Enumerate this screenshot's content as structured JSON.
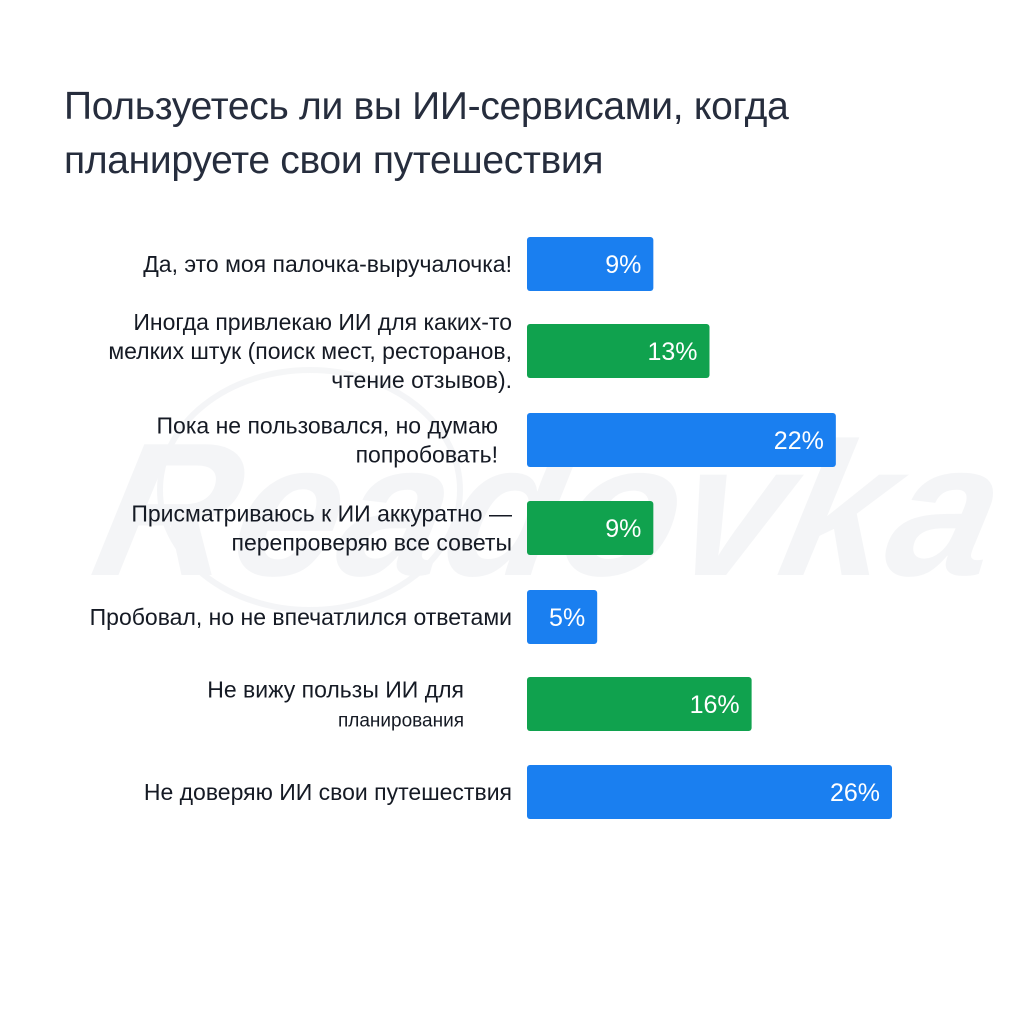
{
  "chart_data": {
    "type": "bar",
    "orientation": "horizontal",
    "title": "Пользуетесь ли вы ИИ-сервисами, когда планируете свои путешествия",
    "unit": "%",
    "xlim": [
      0,
      26
    ],
    "grid": false,
    "legend": "none",
    "categories": [
      "Да, это моя палочка-выручалочка!",
      "Иногда привлекаю ИИ для каких-то мелких штук (поиск мест, ресторанов, чтение отзывов).",
      "Пока не пользовался, но думаю попробовать!",
      "Присматриваюсь к ИИ аккуратно — перепроверяю все советы",
      "Пробовал, но не впечатлился ответами",
      "Не вижу пользы ИИ для планирования",
      "Не доверяю ИИ свои путешествия"
    ],
    "category_lines": [
      [
        "Да, это моя палочка-выручалочка!"
      ],
      [
        "Иногда привлекаю ИИ для каких-то",
        "мелких штук (поиск мест, ресторанов,",
        "чтение отзывов)."
      ],
      [
        "Пока не пользовался, но думаю",
        "попробовать!"
      ],
      [
        "Присматриваюсь к ИИ аккуратно —",
        "перепроверяю все советы"
      ],
      [
        "Пробовал, но не впечатлился ответами"
      ],
      [
        "Не вижу пользы ИИ для",
        "планирования"
      ],
      [
        "Не доверяю ИИ свои путешествия"
      ]
    ],
    "values": [
      9,
      13,
      22,
      9,
      5,
      16,
      26
    ],
    "value_labels": [
      "9%",
      "13%",
      "22%",
      "9%",
      "5%",
      "16%",
      "26%"
    ],
    "bar_colors": [
      "#1a7ff0",
      "#10a24e",
      "#1a7ff0",
      "#10a24e",
      "#1a7ff0",
      "#10a24e",
      "#1a7ff0"
    ]
  },
  "colors": {
    "blue": "#1a7ff0",
    "green": "#10a24e",
    "title": "#262d3d"
  },
  "watermark": "Readovka"
}
